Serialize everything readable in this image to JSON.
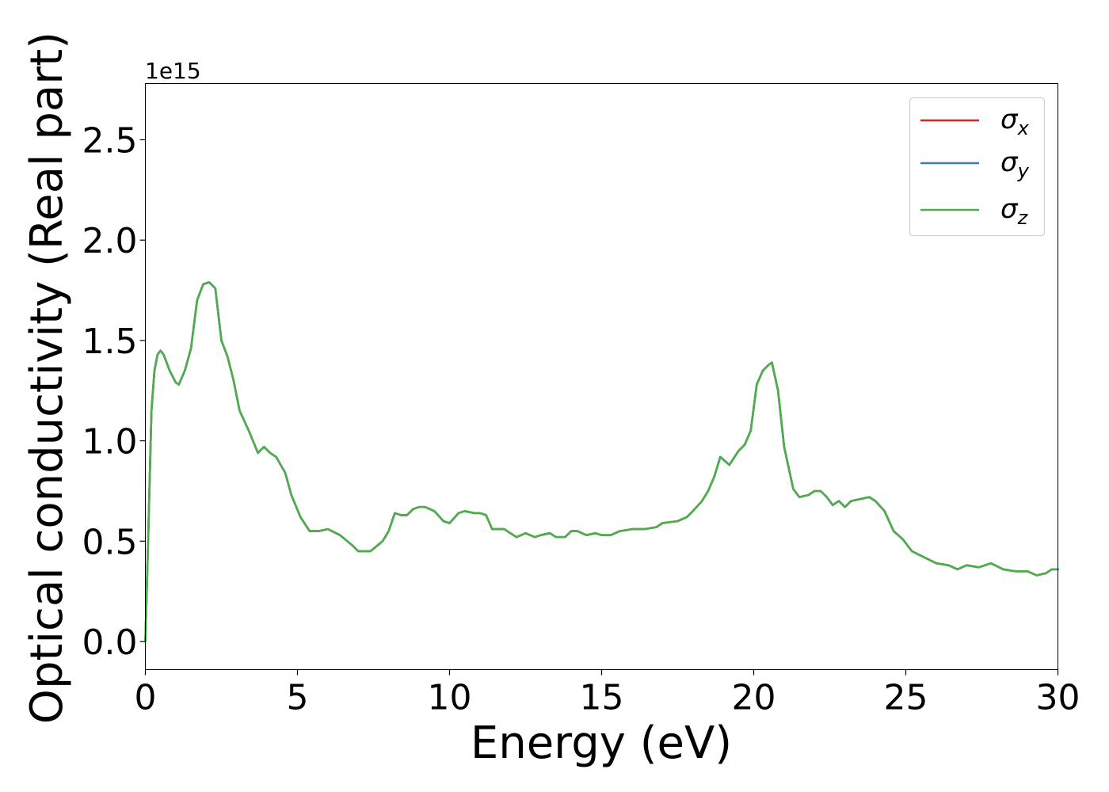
{
  "chart_data": {
    "type": "line",
    "xlabel": "Energy (eV)",
    "ylabel": "Optical conductivity (Real part)",
    "offset_label": "1e15",
    "xlim": [
      0,
      30
    ],
    "ylim": [
      -0.14,
      2.78
    ],
    "xticks": [
      0,
      5,
      10,
      15,
      20,
      25,
      30
    ],
    "xtick_labels": [
      "0",
      "5",
      "10",
      "15",
      "20",
      "25",
      "30"
    ],
    "yticks": [
      0.0,
      0.5,
      1.0,
      1.5,
      2.0,
      2.5
    ],
    "ytick_labels": [
      "0.0",
      "0.5",
      "1.0",
      "1.5",
      "2.0",
      "2.5"
    ],
    "grid": false,
    "legend_position": "upper right",
    "series": [
      {
        "name": "σx",
        "symbol": "σ",
        "subscript": "x",
        "color": "#d62728"
      },
      {
        "name": "σy",
        "symbol": "σ",
        "subscript": "y",
        "color": "#377eb8"
      },
      {
        "name": "σz",
        "symbol": "σ",
        "subscript": "z",
        "color": "#4daf4a"
      }
    ],
    "x": [
      0,
      0.1,
      0.2,
      0.3,
      0.4,
      0.5,
      0.6,
      0.8,
      1.0,
      1.1,
      1.3,
      1.5,
      1.7,
      1.9,
      2.1,
      2.3,
      2.5,
      2.7,
      2.9,
      3.1,
      3.4,
      3.7,
      3.9,
      4.1,
      4.3,
      4.6,
      4.8,
      5.1,
      5.4,
      5.7,
      6.0,
      6.4,
      6.8,
      7.0,
      7.4,
      7.8,
      8.0,
      8.2,
      8.4,
      8.6,
      8.8,
      9.0,
      9.2,
      9.5,
      9.8,
      10.0,
      10.3,
      10.5,
      10.8,
      11.0,
      11.2,
      11.4,
      11.6,
      11.8,
      12.0,
      12.2,
      12.5,
      12.8,
      13.0,
      13.3,
      13.5,
      13.8,
      14.0,
      14.2,
      14.5,
      14.8,
      15.0,
      15.3,
      15.6,
      16.0,
      16.4,
      16.8,
      17.0,
      17.5,
      17.8,
      18.0,
      18.3,
      18.5,
      18.7,
      18.9,
      19.2,
      19.5,
      19.7,
      19.9,
      20.1,
      20.3,
      20.5,
      20.6,
      20.8,
      21.0,
      21.3,
      21.5,
      21.8,
      22.0,
      22.2,
      22.4,
      22.6,
      22.8,
      23.0,
      23.2,
      23.5,
      23.8,
      24.0,
      24.3,
      24.6,
      24.9,
      25.2,
      25.6,
      26.0,
      26.4,
      26.7,
      27.0,
      27.4,
      27.8,
      28.2,
      28.6,
      29.0,
      29.3,
      29.6,
      29.8,
      30.0
    ],
    "y": [
      0.0,
      0.55,
      1.15,
      1.35,
      1.43,
      1.45,
      1.43,
      1.35,
      1.29,
      1.28,
      1.35,
      1.46,
      1.7,
      1.78,
      1.79,
      1.76,
      1.5,
      1.42,
      1.3,
      1.15,
      1.05,
      0.94,
      0.97,
      0.94,
      0.92,
      0.84,
      0.73,
      0.62,
      0.55,
      0.55,
      0.56,
      0.53,
      0.48,
      0.45,
      0.45,
      0.5,
      0.55,
      0.64,
      0.63,
      0.63,
      0.66,
      0.67,
      0.67,
      0.65,
      0.6,
      0.59,
      0.64,
      0.65,
      0.64,
      0.64,
      0.63,
      0.56,
      0.56,
      0.56,
      0.54,
      0.52,
      0.54,
      0.52,
      0.53,
      0.54,
      0.52,
      0.52,
      0.55,
      0.55,
      0.53,
      0.54,
      0.53,
      0.53,
      0.55,
      0.56,
      0.56,
      0.57,
      0.59,
      0.6,
      0.62,
      0.65,
      0.7,
      0.75,
      0.82,
      0.92,
      0.88,
      0.95,
      0.98,
      1.05,
      1.28,
      1.35,
      1.38,
      1.39,
      1.25,
      0.97,
      0.76,
      0.72,
      0.73,
      0.75,
      0.75,
      0.72,
      0.68,
      0.7,
      0.67,
      0.7,
      0.71,
      0.72,
      0.7,
      0.65,
      0.55,
      0.51,
      0.45,
      0.42,
      0.39,
      0.38,
      0.36,
      0.38,
      0.37,
      0.39,
      0.36,
      0.35,
      0.35,
      0.33,
      0.34,
      0.36,
      0.36
    ]
  }
}
